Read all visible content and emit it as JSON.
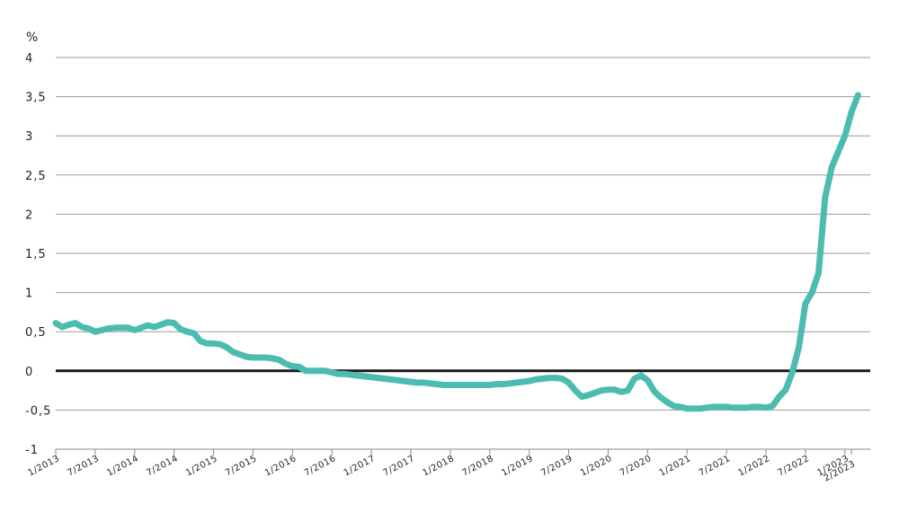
{
  "chart_data": {
    "type": "line",
    "unit_label": "%",
    "ylim": [
      -1,
      4
    ],
    "yticks": [
      -1,
      -0.5,
      0,
      0.5,
      1,
      1.5,
      2,
      2.5,
      3,
      3.5,
      4
    ],
    "ytick_labels": [
      "-1",
      "-0,5",
      "0",
      "0,5",
      "1",
      "1,5",
      "2",
      "2,5",
      "3",
      "3,5",
      "4"
    ],
    "grid": true,
    "x_range": [
      "2013-01",
      "2023-02"
    ],
    "xticks": [
      {
        "date": "2013-01",
        "label": "1/2013"
      },
      {
        "date": "2013-07",
        "label": "7/2013"
      },
      {
        "date": "2014-01",
        "label": "1/2014"
      },
      {
        "date": "2014-07",
        "label": "7/2014"
      },
      {
        "date": "2015-01",
        "label": "1/2015"
      },
      {
        "date": "2015-07",
        "label": "7/2015"
      },
      {
        "date": "2016-01",
        "label": "1/2016"
      },
      {
        "date": "2016-07",
        "label": "7/2016"
      },
      {
        "date": "2017-01",
        "label": "1/2017"
      },
      {
        "date": "2017-07",
        "label": "7/2017"
      },
      {
        "date": "2018-01",
        "label": "1/2018"
      },
      {
        "date": "2018-07",
        "label": "7/2018"
      },
      {
        "date": "2019-01",
        "label": "1/2019"
      },
      {
        "date": "2019-07",
        "label": "7/2019"
      },
      {
        "date": "2020-01",
        "label": "1/2020"
      },
      {
        "date": "2020-07",
        "label": "7/2020"
      },
      {
        "date": "2021-01",
        "label": "1/2021"
      },
      {
        "date": "2021-07",
        "label": "7/2021"
      },
      {
        "date": "2022-01",
        "label": "1/2022"
      },
      {
        "date": "2022-07",
        "label": "7/2022"
      },
      {
        "date": "2023-01",
        "label": "1/2023"
      },
      {
        "date": "2023-02",
        "label": "2/2023"
      }
    ],
    "series": [
      {
        "color": "#4cbcb0",
        "points": [
          [
            "2013-01",
            0.61
          ],
          [
            "2013-02",
            0.56
          ],
          [
            "2013-03",
            0.59
          ],
          [
            "2013-04",
            0.61
          ],
          [
            "2013-05",
            0.56
          ],
          [
            "2013-06",
            0.54
          ],
          [
            "2013-07",
            0.5
          ],
          [
            "2013-08",
            0.52
          ],
          [
            "2013-09",
            0.54
          ],
          [
            "2013-10",
            0.55
          ],
          [
            "2013-11",
            0.55
          ],
          [
            "2013-12",
            0.55
          ],
          [
            "2014-01",
            0.52
          ],
          [
            "2014-02",
            0.55
          ],
          [
            "2014-03",
            0.58
          ],
          [
            "2014-04",
            0.56
          ],
          [
            "2014-05",
            0.59
          ],
          [
            "2014-06",
            0.62
          ],
          [
            "2014-07",
            0.61
          ],
          [
            "2014-08",
            0.53
          ],
          [
            "2014-09",
            0.5
          ],
          [
            "2014-10",
            0.48
          ],
          [
            "2014-11",
            0.38
          ],
          [
            "2014-12",
            0.35
          ],
          [
            "2015-01",
            0.35
          ],
          [
            "2015-02",
            0.34
          ],
          [
            "2015-03",
            0.3
          ],
          [
            "2015-04",
            0.24
          ],
          [
            "2015-05",
            0.21
          ],
          [
            "2015-06",
            0.18
          ],
          [
            "2015-07",
            0.17
          ],
          [
            "2015-08",
            0.17
          ],
          [
            "2015-09",
            0.17
          ],
          [
            "2015-10",
            0.16
          ],
          [
            "2015-11",
            0.14
          ],
          [
            "2015-12",
            0.09
          ],
          [
            "2016-01",
            0.06
          ],
          [
            "2016-02",
            0.05
          ],
          [
            "2016-03",
            0.0
          ],
          [
            "2016-04",
            0.0
          ],
          [
            "2016-05",
            0.0
          ],
          [
            "2016-06",
            0.0
          ],
          [
            "2016-07",
            -0.02
          ],
          [
            "2016-08",
            -0.04
          ],
          [
            "2016-09",
            -0.04
          ],
          [
            "2016-10",
            -0.05
          ],
          [
            "2016-11",
            -0.06
          ],
          [
            "2016-12",
            -0.07
          ],
          [
            "2017-01",
            -0.08
          ],
          [
            "2017-02",
            -0.09
          ],
          [
            "2017-03",
            -0.1
          ],
          [
            "2017-04",
            -0.11
          ],
          [
            "2017-05",
            -0.12
          ],
          [
            "2017-06",
            -0.13
          ],
          [
            "2017-07",
            -0.14
          ],
          [
            "2017-08",
            -0.15
          ],
          [
            "2017-09",
            -0.15
          ],
          [
            "2017-10",
            -0.16
          ],
          [
            "2017-11",
            -0.17
          ],
          [
            "2017-12",
            -0.18
          ],
          [
            "2018-01",
            -0.18
          ],
          [
            "2018-02",
            -0.18
          ],
          [
            "2018-03",
            -0.18
          ],
          [
            "2018-04",
            -0.18
          ],
          [
            "2018-05",
            -0.18
          ],
          [
            "2018-06",
            -0.18
          ],
          [
            "2018-07",
            -0.18
          ],
          [
            "2018-08",
            -0.17
          ],
          [
            "2018-09",
            -0.17
          ],
          [
            "2018-10",
            -0.16
          ],
          [
            "2018-11",
            -0.15
          ],
          [
            "2018-12",
            -0.14
          ],
          [
            "2019-01",
            -0.13
          ],
          [
            "2019-02",
            -0.11
          ],
          [
            "2019-03",
            -0.1
          ],
          [
            "2019-04",
            -0.09
          ],
          [
            "2019-05",
            -0.09
          ],
          [
            "2019-06",
            -0.1
          ],
          [
            "2019-07",
            -0.15
          ],
          [
            "2019-08",
            -0.25
          ],
          [
            "2019-09",
            -0.33
          ],
          [
            "2019-10",
            -0.31
          ],
          [
            "2019-11",
            -0.28
          ],
          [
            "2019-12",
            -0.25
          ],
          [
            "2020-01",
            -0.24
          ],
          [
            "2020-02",
            -0.24
          ],
          [
            "2020-03",
            -0.27
          ],
          [
            "2020-04",
            -0.25
          ],
          [
            "2020-05",
            -0.1
          ],
          [
            "2020-06",
            -0.06
          ],
          [
            "2020-07",
            -0.12
          ],
          [
            "2020-08",
            -0.26
          ],
          [
            "2020-09",
            -0.34
          ],
          [
            "2020-10",
            -0.4
          ],
          [
            "2020-11",
            -0.45
          ],
          [
            "2020-12",
            -0.46
          ],
          [
            "2021-01",
            -0.48
          ],
          [
            "2021-02",
            -0.48
          ],
          [
            "2021-03",
            -0.48
          ],
          [
            "2021-04",
            -0.47
          ],
          [
            "2021-05",
            -0.46
          ],
          [
            "2021-06",
            -0.46
          ],
          [
            "2021-07",
            -0.46
          ],
          [
            "2021-08",
            -0.47
          ],
          [
            "2021-09",
            -0.47
          ],
          [
            "2021-10",
            -0.47
          ],
          [
            "2021-11",
            -0.46
          ],
          [
            "2021-12",
            -0.46
          ],
          [
            "2022-01",
            -0.47
          ],
          [
            "2022-02",
            -0.45
          ],
          [
            "2022-03",
            -0.33
          ],
          [
            "2022-04",
            -0.24
          ],
          [
            "2022-05",
            -0.02
          ],
          [
            "2022-06",
            0.3
          ],
          [
            "2022-07",
            0.86
          ],
          [
            "2022-08",
            1.0
          ],
          [
            "2022-09",
            1.25
          ],
          [
            "2022-10",
            2.22
          ],
          [
            "2022-11",
            2.6
          ],
          [
            "2022-12",
            2.8
          ],
          [
            "2023-01",
            3.0
          ],
          [
            "2023-02",
            3.3
          ],
          [
            "2023-03",
            3.52
          ]
        ]
      }
    ]
  }
}
